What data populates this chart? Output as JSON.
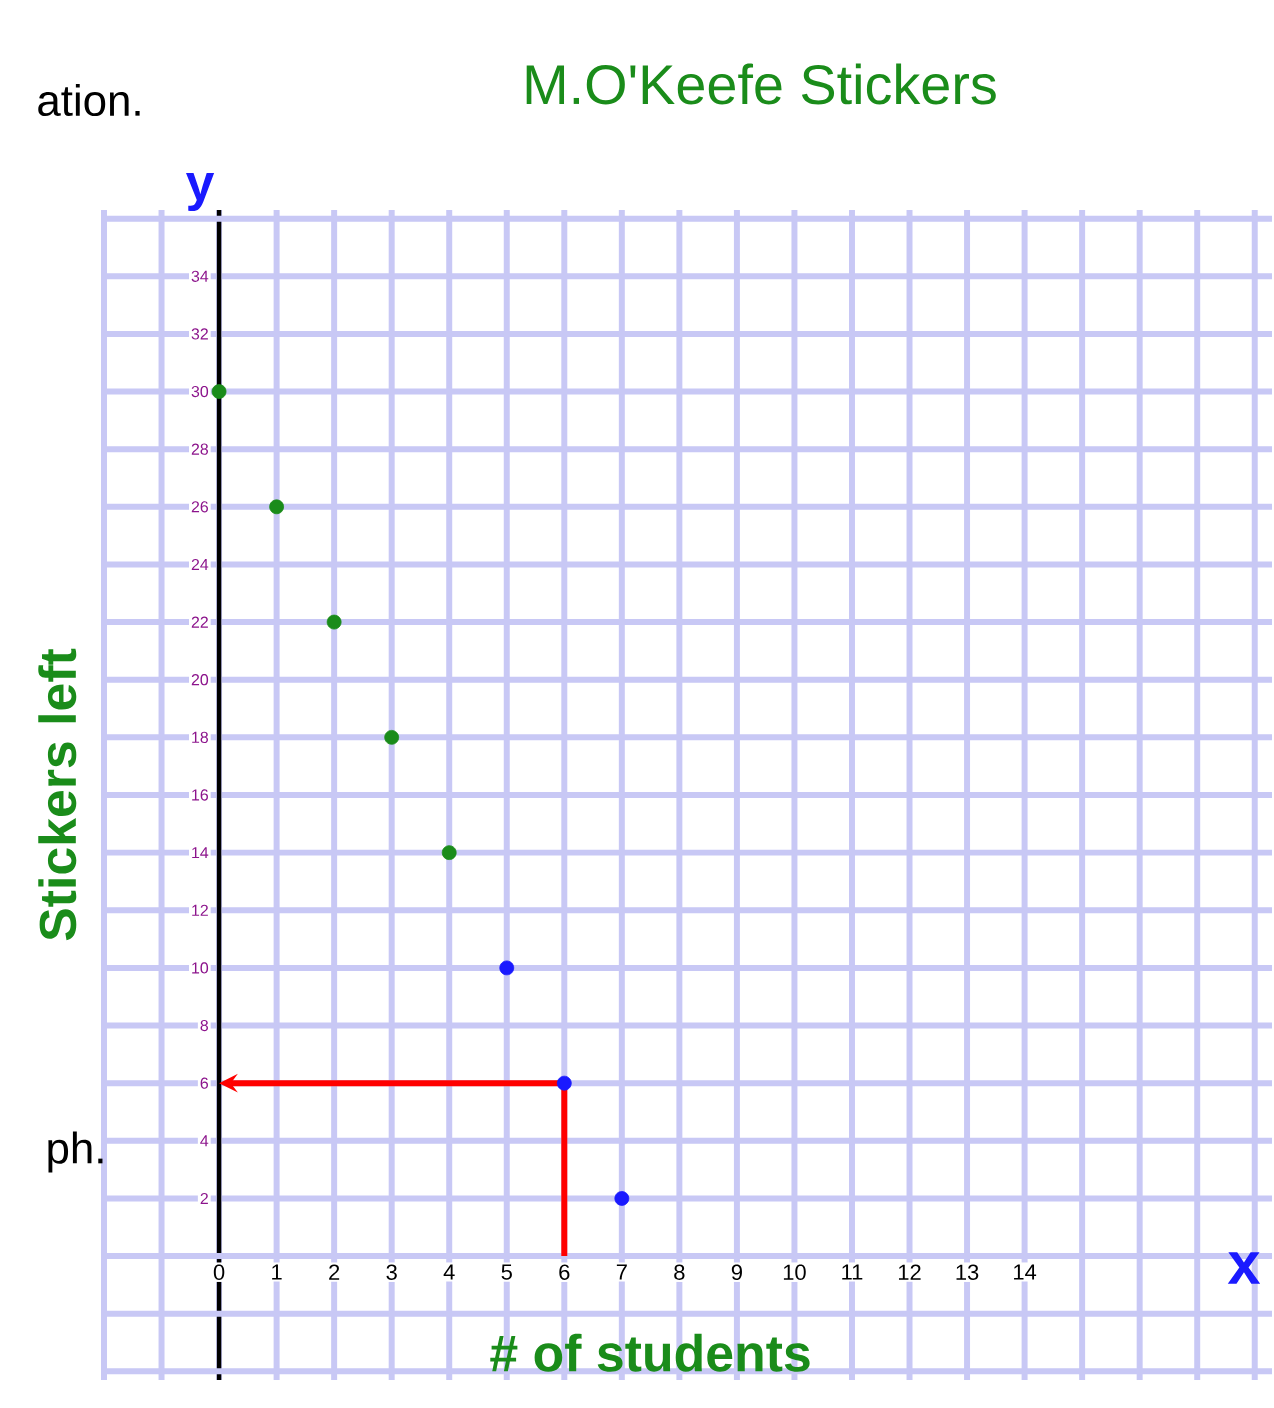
{
  "chart_data": {
    "type": "scatter",
    "title": "M.O'Keefe Stickers",
    "xlabel": "# of students",
    "ylabel": "Stickers left",
    "x": [
      0,
      1,
      2,
      3,
      4,
      5,
      6,
      7
    ],
    "values": [
      30,
      26,
      22,
      18,
      14,
      10,
      6,
      2
    ],
    "colors": [
      "#1a8c1a",
      "#1a8c1a",
      "#1a8c1a",
      "#1a8c1a",
      "#1a8c1a",
      "#1a1aff",
      "#1a1aff",
      "#1a1aff"
    ],
    "xlim": [
      -2,
      18.3
    ],
    "ylim": [
      -4.3,
      36.3
    ],
    "xticks": [
      0,
      1,
      2,
      3,
      4,
      5,
      6,
      7,
      8,
      9,
      10,
      11,
      12,
      13,
      14
    ],
    "yticks": [
      2,
      4,
      6,
      8,
      10,
      12,
      14,
      16,
      18,
      20,
      22,
      24,
      26,
      28,
      30,
      32,
      34
    ],
    "grid": true,
    "marker": "circle",
    "annotations": [
      "y",
      "x",
      "ation.",
      "ph."
    ]
  }
}
